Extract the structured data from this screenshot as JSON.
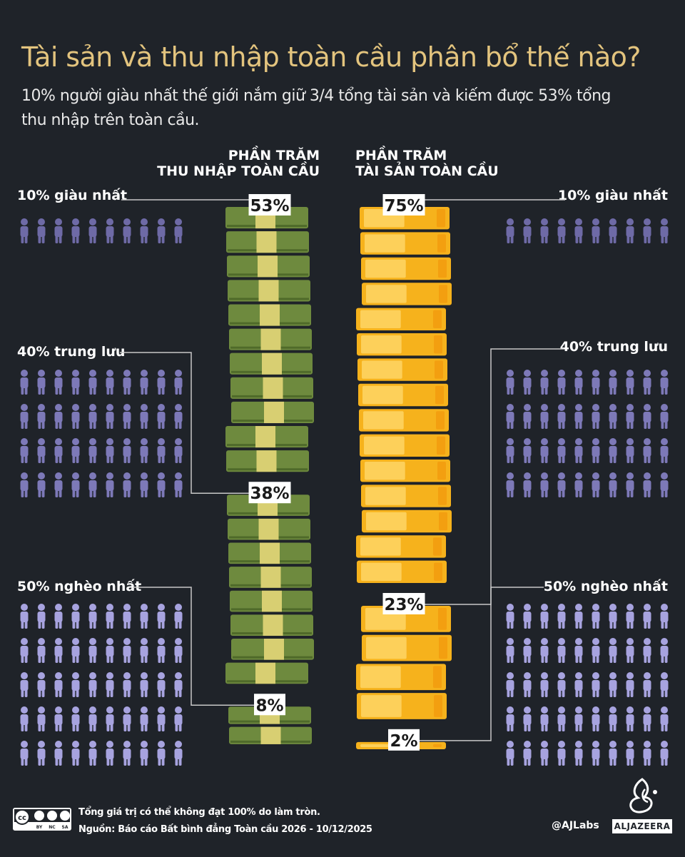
{
  "header": {
    "title": "Tài sản và thu nhập toàn cầu phân bổ thế nào?",
    "subtitle": "10% người giàu nhất thế giới nắm giữ 3/4 tổng tài sản và kiếm được 53% tổng thu nhập trên toàn cầu."
  },
  "columns": {
    "income_line1": "PHẦN TRĂM",
    "income_line2": "THU NHẬP TOÀN CẦU",
    "wealth_line1": "PHẦN TRĂM",
    "wealth_line2": "TÀI SẢN TOÀN CẦU"
  },
  "groups": {
    "top": "10% giàu nhất",
    "middle": "40% trung lưu",
    "bottom": "50% nghèo nhất"
  },
  "chart_data": {
    "type": "bar",
    "categories": [
      "10% giàu nhất",
      "40% trung lưu",
      "50% nghèo nhất"
    ],
    "series": [
      {
        "name": "THU NHẬP TOÀN CẦU",
        "values": [
          53,
          38,
          8
        ],
        "labels": [
          "53%",
          "38%",
          "8%"
        ]
      },
      {
        "name": "TÀI SẢN TOÀN CẦU",
        "values": [
          75,
          23,
          2
        ],
        "labels": [
          "75%",
          "23%",
          "2%"
        ]
      }
    ],
    "people_icons": [
      10,
      40,
      50
    ]
  },
  "footer": {
    "note": "Tổng giá trị có thể không đạt 100% do làm tròn.",
    "source": "Nguồn: Báo cáo Bất bình đẳng Toàn cầu 2026 - 10/12/2025",
    "handle": "@AJLabs",
    "brand": "ALJAZEERA",
    "license": [
      "BY",
      "NC",
      "SA"
    ]
  },
  "colors": {
    "background": "#1f2329",
    "title": "#e3c47e",
    "people_rich": "#6e6aa6",
    "people_mid": "#7d79b8",
    "people_poor": "#a7a3df",
    "money": "#6e8a3e",
    "money_band": "#d8cf72",
    "gold": "#f6b21c",
    "gold_light": "#ffd76a"
  },
  "icons": [
    "person-icon",
    "money-stack-icon",
    "gold-bar-icon",
    "creative-commons-icon",
    "aljazeera-logo-icon"
  ]
}
